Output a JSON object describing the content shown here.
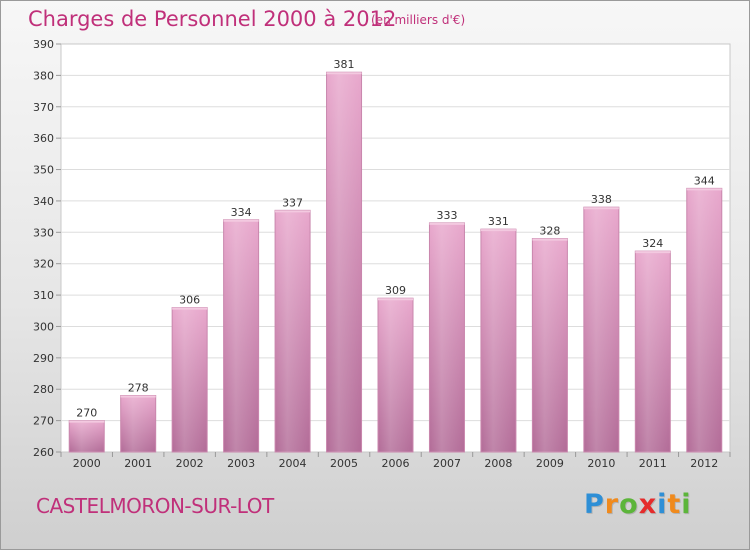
{
  "header": {
    "title": "Charges de Personnel 2000 à 2012",
    "subtitle": "(en milliers d'€)"
  },
  "footer": {
    "commune": "CASTELMORON-SUR-LOT",
    "logo_letters": [
      {
        "ch": "P",
        "color": "#2e8fd6"
      },
      {
        "ch": "r",
        "color": "#f08a1c"
      },
      {
        "ch": "o",
        "color": "#5cb53a"
      },
      {
        "ch": "x",
        "color": "#e52b2b"
      },
      {
        "ch": "i",
        "color": "#2e8fd6"
      },
      {
        "ch": "t",
        "color": "#f08a1c"
      },
      {
        "ch": "i",
        "color": "#5cb53a"
      }
    ]
  },
  "chart_data": {
    "type": "bar",
    "categories": [
      "2000",
      "2001",
      "2002",
      "2003",
      "2004",
      "2005",
      "2006",
      "2007",
      "2008",
      "2009",
      "2010",
      "2011",
      "2012"
    ],
    "values": [
      270,
      278,
      306,
      334,
      337,
      381,
      309,
      333,
      331,
      328,
      338,
      324,
      344
    ],
    "ylim": [
      260,
      390
    ],
    "yticks": [
      260,
      270,
      280,
      290,
      300,
      310,
      320,
      330,
      340,
      350,
      360,
      370,
      380,
      390
    ],
    "grid": true,
    "bar_color": "#d98fba",
    "plot_background": "#ffffff",
    "grid_color": "#dddddd"
  }
}
